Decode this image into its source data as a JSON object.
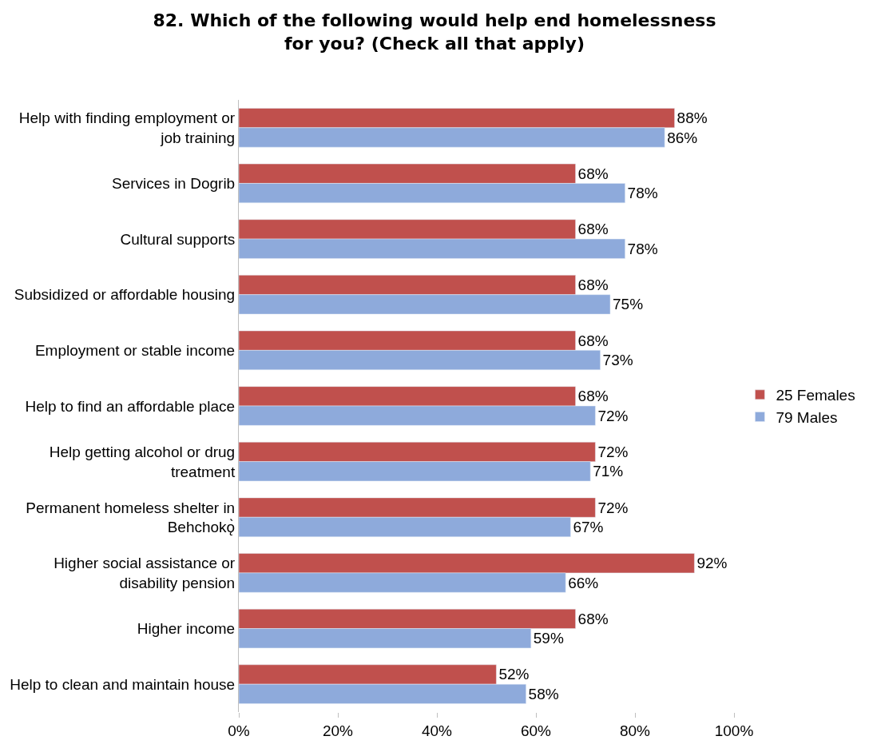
{
  "chart_data": {
    "type": "bar",
    "orientation": "horizontal",
    "title": "82. Which of the following would help end homelessness for you? (Check all that apply)",
    "categories": [
      "Help with finding employment or job training",
      "Services in Dogrib",
      "Cultural supports",
      "Subsidized or affordable housing",
      "Employment or stable income",
      "Help to find an affordable place",
      "Help getting alcohol or drug treatment",
      "Permanent homeless shelter in Behchokǫ̀",
      "Higher social assistance or disability pension",
      "Higher income",
      "Help to clean and maintain house"
    ],
    "series": [
      {
        "name": "25 Females",
        "color": "#c0504d",
        "values": [
          88,
          68,
          68,
          68,
          68,
          68,
          72,
          72,
          92,
          68,
          52
        ],
        "value_labels": [
          "88%",
          "68%",
          "68%",
          "68%",
          "68%",
          "68%",
          "72%",
          "72%",
          "92%",
          "68%",
          "52%"
        ]
      },
      {
        "name": "79 Males",
        "color": "#8eaadb",
        "values": [
          86,
          78,
          78,
          75,
          73,
          72,
          71,
          67,
          66,
          59,
          58
        ],
        "value_labels": [
          "86%",
          "78%",
          "78%",
          "75%",
          "73%",
          "72%",
          "71%",
          "67%",
          "66%",
          "59%",
          "58%"
        ]
      }
    ],
    "xlim": [
      0,
      100
    ],
    "xticks": [
      {
        "value": 0,
        "label": "0%"
      },
      {
        "value": 20,
        "label": "20%"
      },
      {
        "value": 40,
        "label": "40%"
      },
      {
        "value": 60,
        "label": "60%"
      },
      {
        "value": 80,
        "label": "80%"
      },
      {
        "value": 100,
        "label": "100%"
      }
    ],
    "legend": "right"
  }
}
